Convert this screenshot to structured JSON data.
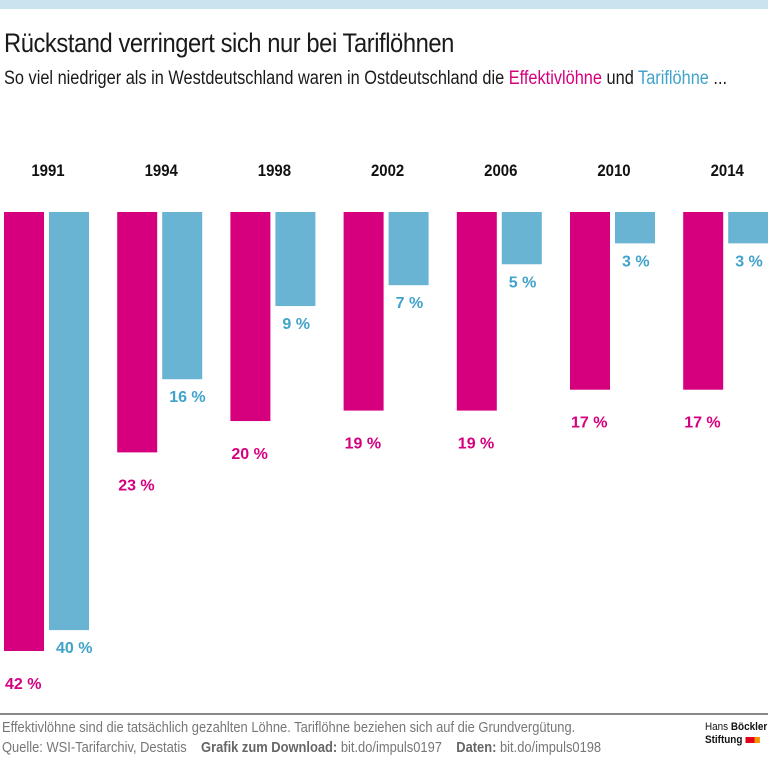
{
  "title": "Rückstand verringert sich nur bei Tariflöhnen",
  "subtitle": {
    "prefix": "So viel niedriger als in Westdeutschland waren in Ostdeutschland die ",
    "series1": "Effektivlöhne",
    "middle": " und ",
    "series2": "Tariflöhne",
    "suffix": " ..."
  },
  "colors": {
    "effektiv": "#d6007f",
    "tarif": "#6ab4d3",
    "tarif_label": "#3fa3cb",
    "topbar": "#c9e4ee"
  },
  "chart_data": {
    "type": "bar",
    "orientation": "vertical, bars hanging downward",
    "categories": [
      "1991",
      "1994",
      "1998",
      "2002",
      "2006",
      "2010",
      "2014"
    ],
    "series": [
      {
        "name": "Effektivlöhne",
        "values": [
          42,
          23,
          20,
          19,
          19,
          17,
          17
        ]
      },
      {
        "name": "Tariflöhne",
        "values": [
          40,
          16,
          9,
          7,
          5,
          3,
          3
        ]
      }
    ],
    "unit": "%",
    "ylim": [
      0,
      42
    ],
    "grid": false
  },
  "footer": {
    "note": "Effektivlöhne sind die tatsächlich gezahlten Löhne. Tariflöhne beziehen sich auf die Grundvergütung.",
    "source": "Quelle: WSI-Tarifarchiv, Destatis",
    "download_label": "Grafik zum Download:",
    "download_link": "bit.do/impuls0197",
    "data_label": "Daten:",
    "data_link": "bit.do/impuls0198"
  },
  "logo": {
    "line1a": "Hans ",
    "line1b": "Böckler",
    "line2": "Stiftung"
  }
}
